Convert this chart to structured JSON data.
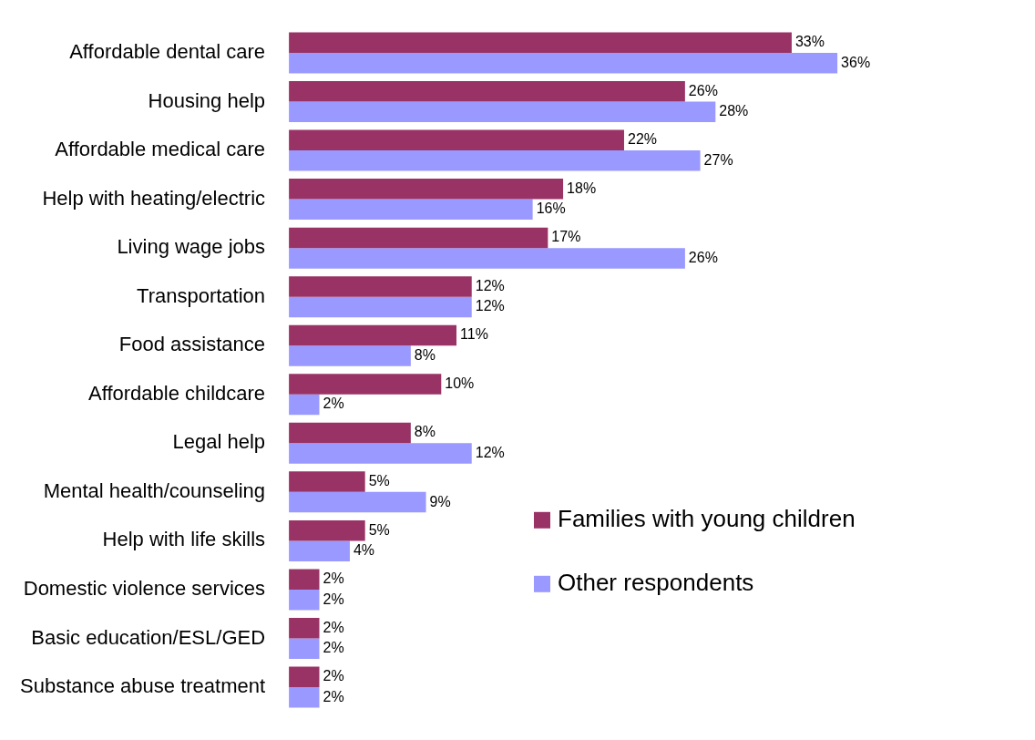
{
  "chart_data": {
    "type": "bar",
    "orientation": "horizontal",
    "categories": [
      "Affordable dental care",
      "Housing help",
      "Affordable medical care",
      "Help with heating/electric",
      "Living wage jobs",
      "Transportation",
      "Food assistance",
      "Affordable childcare",
      "Legal help",
      "Mental health/counseling",
      "Help with life skills",
      "Domestic violence services",
      "Basic education/ESL/GED",
      "Substance abuse treatment"
    ],
    "series": [
      {
        "name": "Families with young children",
        "color": "#993366",
        "values": [
          33,
          26,
          22,
          18,
          17,
          12,
          11,
          10,
          8,
          5,
          5,
          2,
          2,
          2
        ],
        "value_labels": [
          "33%",
          "26%",
          "22%",
          "18%",
          "17%",
          "12%",
          "11%",
          "10%",
          "8%",
          "5%",
          "5%",
          "2%",
          "2%",
          "2%"
        ]
      },
      {
        "name": "Other respondents",
        "color": "#9999ff",
        "values": [
          36,
          28,
          27,
          16,
          26,
          12,
          8,
          2,
          12,
          9,
          4,
          2,
          2,
          2
        ],
        "value_labels": [
          "36%",
          "28%",
          "27%",
          "16%",
          "26%",
          "12%",
          "8%",
          "2%",
          "12%",
          "9%",
          "4%",
          "2%",
          "2%",
          "2%"
        ]
      }
    ],
    "legend": "bottom right"
  }
}
